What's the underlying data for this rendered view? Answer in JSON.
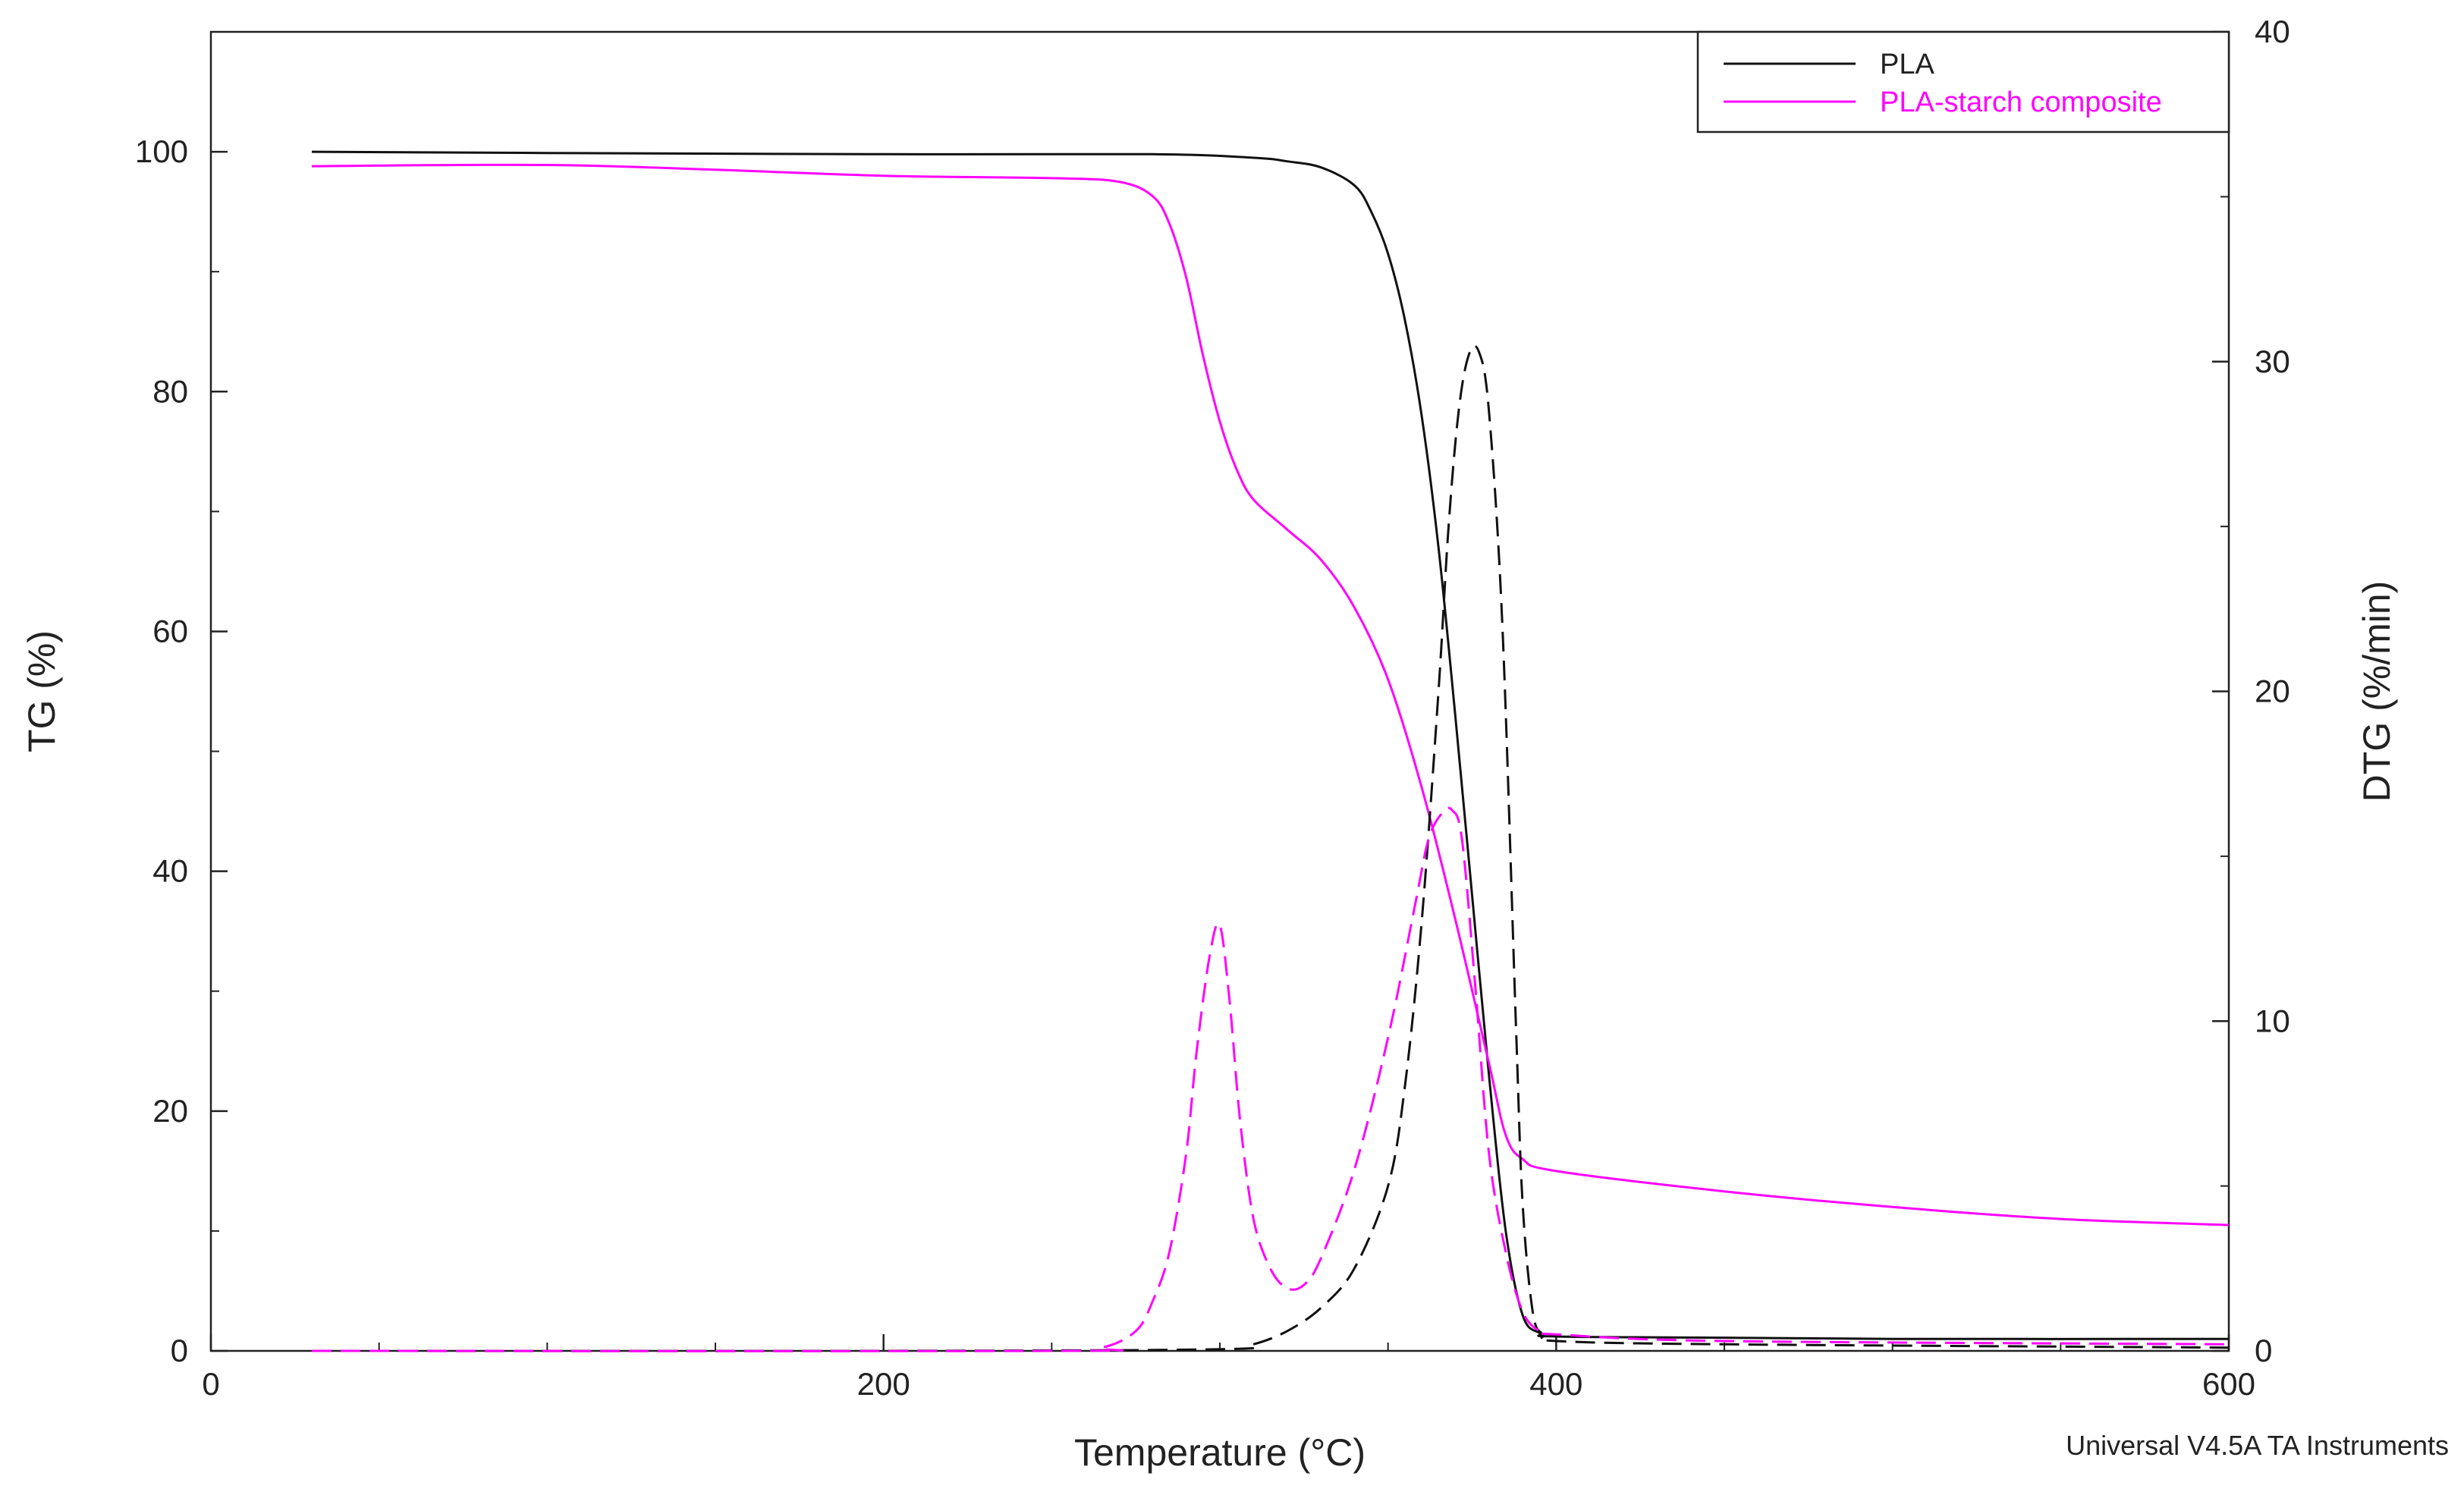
{
  "chart_data": {
    "type": "line",
    "xlabel": "Temperature (°C)",
    "ylabel": "TG (%)",
    "y2label": "DTG (%/min)",
    "xlim": [
      0,
      600
    ],
    "ylim": [
      0,
      110
    ],
    "y2lim": [
      0,
      40
    ],
    "xticks": [
      0,
      200,
      400,
      600
    ],
    "yticks": [
      0,
      20,
      40,
      60,
      80,
      100
    ],
    "y2ticks": [
      0,
      10,
      20,
      30,
      40
    ],
    "grid": false,
    "legend_position": "top-right",
    "colors": {
      "PLA": "#111111",
      "PLA-starch composite": "#ff00ff"
    },
    "legend": [
      {
        "label": "PLA",
        "color": "#111111"
      },
      {
        "label": "PLA-starch composite",
        "color": "#ff00ff"
      }
    ],
    "footer": "Universal V4.5A TA Instruments",
    "series": [
      {
        "name": "PLA",
        "measure": "TG",
        "axis": "left",
        "style": "solid",
        "color": "#111111",
        "x": [
          30,
          100,
          200,
          280,
          310,
          320,
          330,
          340,
          345,
          350,
          355,
          360,
          365,
          370,
          375,
          380,
          385,
          390,
          395,
          400,
          450,
          500,
          600
        ],
        "y": [
          100,
          99.9,
          99.8,
          99.8,
          99.5,
          99.2,
          98.7,
          97.2,
          95,
          91.5,
          86,
          78,
          67,
          53,
          38,
          23,
          10,
          3,
          1.5,
          1.2,
          1.1,
          1.0,
          1.0
        ]
      },
      {
        "name": "PLA-starch composite",
        "measure": "TG",
        "axis": "left",
        "style": "solid",
        "color": "#ff00ff",
        "x": [
          30,
          100,
          150,
          200,
          250,
          270,
          280,
          285,
          290,
          295,
          300,
          305,
          310,
          320,
          330,
          340,
          350,
          360,
          370,
          380,
          385,
          390,
          400,
          450,
          500,
          550,
          600
        ],
        "y": [
          98.8,
          98.9,
          98.5,
          98.0,
          97.8,
          97.5,
          96.3,
          94,
          89.5,
          83,
          77.5,
          73.5,
          71,
          68.5,
          66,
          62,
          56,
          47,
          36,
          24,
          18,
          16,
          15,
          13.3,
          12,
          11,
          10.5
        ]
      },
      {
        "name": "PLA",
        "measure": "DTG",
        "axis": "right",
        "style": "dashed",
        "color": "#111111",
        "x": [
          30,
          200,
          300,
          310,
          320,
          330,
          340,
          350,
          355,
          360,
          365,
          368,
          371,
          374,
          377,
          380,
          384,
          388,
          390,
          393,
          396,
          400,
          450,
          600
        ],
        "y": [
          0,
          0,
          0.05,
          0.2,
          0.6,
          1.3,
          2.5,
          5,
          8,
          13,
          20,
          25,
          28.5,
          30.2,
          30.3,
          28.5,
          22,
          10,
          4.5,
          1.2,
          0.5,
          0.3,
          0.2,
          0.1
        ]
      },
      {
        "name": "PLA-starch composite",
        "measure": "DTG",
        "axis": "right",
        "style": "dashed",
        "color": "#ff00ff",
        "x": [
          30,
          250,
          265,
          275,
          280,
          285,
          290,
          293,
          297,
          300,
          303,
          306,
          310,
          315,
          320,
          325,
          330,
          340,
          350,
          358,
          362,
          366,
          369,
          372,
          376,
          380,
          385,
          390,
          395,
          400,
          450,
          600
        ],
        "y": [
          0,
          0,
          0.1,
          0.6,
          1.5,
          3,
          6,
          9,
          12,
          12.9,
          10.5,
          7,
          4,
          2.5,
          1.9,
          2,
          2.8,
          5.5,
          9.5,
          13.5,
          15.5,
          16.3,
          16.4,
          15.5,
          11,
          6,
          3,
          1.2,
          0.6,
          0.5,
          0.3,
          0.2
        ]
      }
    ]
  }
}
